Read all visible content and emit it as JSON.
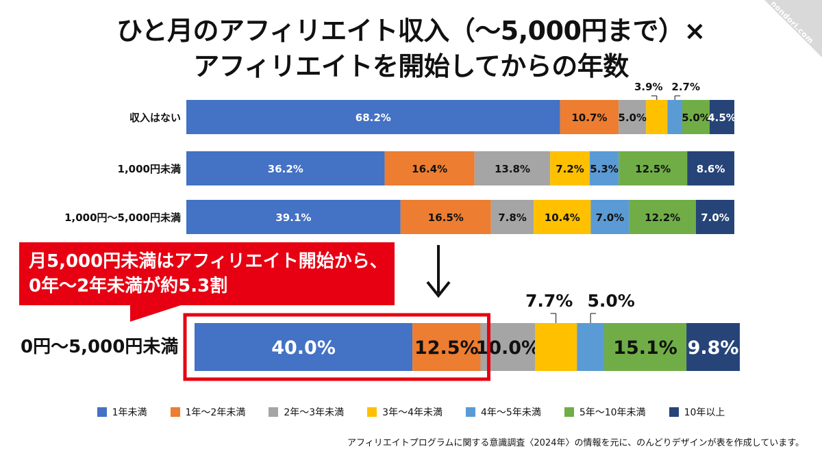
{
  "header": {
    "title_line1": "ひと月のアフィリエイト収入（〜5,000円まで）×",
    "title_line2": "アフィリエイトを開始してからの年数"
  },
  "watermark": "nondori.com",
  "callout": {
    "line1": "月5,000円未満はアフィリエイト開始から、",
    "line2": "0年〜2年未満が約5.3割"
  },
  "source_note": "アフィリエイトプログラムに関する意識調査〈2024年〉の情報を元に、のんどりデザインが表を作成しています。",
  "colors": {
    "1年未満": "#4472c4",
    "1年〜2年未満": "#ed7d31",
    "2年〜3年未満": "#a5a5a5",
    "3年〜4年未満": "#ffc000",
    "4年〜5年未満": "#5b9bd5",
    "5年〜10年未満": "#70ad47",
    "10年以上": "#264478",
    "highlight": "#e60012"
  },
  "chart_data": [
    {
      "type": "bar",
      "orientation": "horizontal",
      "stacked": true,
      "percent": true,
      "title": "",
      "categories": [
        "収入はない",
        "1,000円未満",
        "1,000円〜5,000円未満"
      ],
      "series": [
        {
          "name": "1年未満",
          "values": [
            68.2,
            36.2,
            39.1
          ]
        },
        {
          "name": "1年〜2年未満",
          "values": [
            10.7,
            16.4,
            16.5
          ]
        },
        {
          "name": "2年〜3年未満",
          "values": [
            5.0,
            13.8,
            7.8
          ]
        },
        {
          "name": "3年〜4年未満",
          "values": [
            3.9,
            7.2,
            10.4
          ]
        },
        {
          "name": "4年〜5年未満",
          "values": [
            2.7,
            5.3,
            7.0
          ]
        },
        {
          "name": "5年〜10年未満",
          "values": [
            5.0,
            12.5,
            12.2
          ]
        },
        {
          "name": "10年以上",
          "values": [
            4.5,
            8.6,
            7.0
          ]
        }
      ],
      "data_labels": [
        [
          "68.2%",
          "10.7%",
          "5.0%",
          "3.9%",
          "2.7%",
          "5.0%",
          "4.5%"
        ],
        [
          "36.2%",
          "16.4%",
          "13.8%",
          "7.2%",
          "5.3%",
          "12.5%",
          "8.6%"
        ],
        [
          "39.1%",
          "16.5%",
          "7.8%",
          "10.4%",
          "7.0%",
          "12.2%",
          "7.0%"
        ]
      ],
      "legend_position": "bottom"
    },
    {
      "type": "bar",
      "orientation": "horizontal",
      "stacked": true,
      "percent": true,
      "title": "",
      "categories": [
        "0円〜5,000円未満"
      ],
      "series": [
        {
          "name": "1年未満",
          "values": [
            40.0
          ]
        },
        {
          "name": "1年〜2年未満",
          "values": [
            12.5
          ]
        },
        {
          "name": "2年〜3年未満",
          "values": [
            10.0
          ]
        },
        {
          "name": "3年〜4年未満",
          "values": [
            7.7
          ]
        },
        {
          "name": "4年〜5年未満",
          "values": [
            5.0
          ]
        },
        {
          "name": "5年〜10年未満",
          "values": [
            15.1
          ]
        },
        {
          "name": "10年以上",
          "values": [
            9.8
          ]
        }
      ],
      "data_labels": [
        [
          "40.0%",
          "12.5%",
          "10.0%",
          "7.7%",
          "5.0%",
          "15.1%",
          "9.8%"
        ]
      ]
    }
  ]
}
